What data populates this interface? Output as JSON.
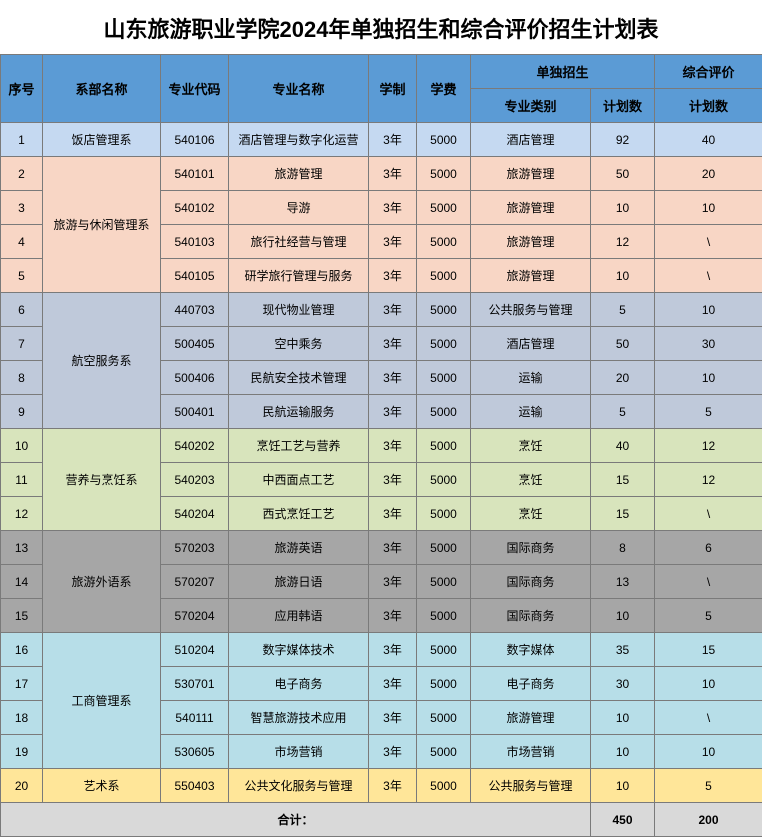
{
  "title": "山东旅游职业学院2024年单独招生和综合评价招生计划表",
  "headers": {
    "seq": "序号",
    "dept": "系部名称",
    "code": "专业代码",
    "major": "专业名称",
    "duration": "学制",
    "fee": "学费",
    "single": "单独招生",
    "category": "专业类别",
    "plan1": "计划数",
    "comprehensive": "综合评价",
    "plan2": "计划数"
  },
  "colors": {
    "header": "#5b9bd5",
    "group1": "#c5d9f1",
    "group2": "#f8d6c5",
    "group3": "#bfc9da",
    "group4": "#d8e4bc",
    "group5": "#a6a6a6",
    "group6": "#b7dee8",
    "group7": "#ffe699",
    "footer": "#d9d9d9"
  },
  "departments": [
    {
      "name": "饭店管理系",
      "color": "#c5d9f1",
      "rows": [
        {
          "seq": "1",
          "code": "540106",
          "major": "酒店管理与数字化运营",
          "duration": "3年",
          "fee": "5000",
          "category": "酒店管理",
          "plan1": "92",
          "plan2": "40"
        }
      ]
    },
    {
      "name": "旅游与休闲管理系",
      "color": "#f8d6c5",
      "rows": [
        {
          "seq": "2",
          "code": "540101",
          "major": "旅游管理",
          "duration": "3年",
          "fee": "5000",
          "category": "旅游管理",
          "plan1": "50",
          "plan2": "20"
        },
        {
          "seq": "3",
          "code": "540102",
          "major": "导游",
          "duration": "3年",
          "fee": "5000",
          "category": "旅游管理",
          "plan1": "10",
          "plan2": "10"
        },
        {
          "seq": "4",
          "code": "540103",
          "major": "旅行社经营与管理",
          "duration": "3年",
          "fee": "5000",
          "category": "旅游管理",
          "plan1": "12",
          "plan2": "\\"
        },
        {
          "seq": "5",
          "code": "540105",
          "major": "研学旅行管理与服务",
          "duration": "3年",
          "fee": "5000",
          "category": "旅游管理",
          "plan1": "10",
          "plan2": "\\"
        }
      ]
    },
    {
      "name": "航空服务系",
      "color": "#bfc9da",
      "rows": [
        {
          "seq": "6",
          "code": "440703",
          "major": "现代物业管理",
          "duration": "3年",
          "fee": "5000",
          "category": "公共服务与管理",
          "plan1": "5",
          "plan2": "10"
        },
        {
          "seq": "7",
          "code": "500405",
          "major": "空中乘务",
          "duration": "3年",
          "fee": "5000",
          "category": "酒店管理",
          "plan1": "50",
          "plan2": "30"
        },
        {
          "seq": "8",
          "code": "500406",
          "major": "民航安全技术管理",
          "duration": "3年",
          "fee": "5000",
          "category": "运输",
          "plan1": "20",
          "plan2": "10"
        },
        {
          "seq": "9",
          "code": "500401",
          "major": "民航运输服务",
          "duration": "3年",
          "fee": "5000",
          "category": "运输",
          "plan1": "5",
          "plan2": "5"
        }
      ]
    },
    {
      "name": "营养与烹饪系",
      "color": "#d8e4bc",
      "rows": [
        {
          "seq": "10",
          "code": "540202",
          "major": "烹饪工艺与营养",
          "duration": "3年",
          "fee": "5000",
          "category": "烹饪",
          "plan1": "40",
          "plan2": "12"
        },
        {
          "seq": "11",
          "code": "540203",
          "major": "中西面点工艺",
          "duration": "3年",
          "fee": "5000",
          "category": "烹饪",
          "plan1": "15",
          "plan2": "12"
        },
        {
          "seq": "12",
          "code": "540204",
          "major": "西式烹饪工艺",
          "duration": "3年",
          "fee": "5000",
          "category": "烹饪",
          "plan1": "15",
          "plan2": "\\"
        }
      ]
    },
    {
      "name": "旅游外语系",
      "color": "#a6a6a6",
      "rows": [
        {
          "seq": "13",
          "code": "570203",
          "major": "旅游英语",
          "duration": "3年",
          "fee": "5000",
          "category": "国际商务",
          "plan1": "8",
          "plan2": "6"
        },
        {
          "seq": "14",
          "code": "570207",
          "major": "旅游日语",
          "duration": "3年",
          "fee": "5000",
          "category": "国际商务",
          "plan1": "13",
          "plan2": "\\"
        },
        {
          "seq": "15",
          "code": "570204",
          "major": "应用韩语",
          "duration": "3年",
          "fee": "5000",
          "category": "国际商务",
          "plan1": "10",
          "plan2": "5"
        }
      ]
    },
    {
      "name": "工商管理系",
      "color": "#b7dee8",
      "rows": [
        {
          "seq": "16",
          "code": "510204",
          "major": "数字媒体技术",
          "duration": "3年",
          "fee": "5000",
          "category": "数字媒体",
          "plan1": "35",
          "plan2": "15"
        },
        {
          "seq": "17",
          "code": "530701",
          "major": "电子商务",
          "duration": "3年",
          "fee": "5000",
          "category": "电子商务",
          "plan1": "30",
          "plan2": "10"
        },
        {
          "seq": "18",
          "code": "540111",
          "major": "智慧旅游技术应用",
          "duration": "3年",
          "fee": "5000",
          "category": "旅游管理",
          "plan1": "10",
          "plan2": "\\"
        },
        {
          "seq": "19",
          "code": "530605",
          "major": "市场营销",
          "duration": "3年",
          "fee": "5000",
          "category": "市场营销",
          "plan1": "10",
          "plan2": "10"
        }
      ]
    },
    {
      "name": "艺术系",
      "color": "#ffe699",
      "rows": [
        {
          "seq": "20",
          "code": "550403",
          "major": "公共文化服务与管理",
          "duration": "3年",
          "fee": "5000",
          "category": "公共服务与管理",
          "plan1": "10",
          "plan2": "5"
        }
      ]
    }
  ],
  "footer": {
    "label": "合计：",
    "total1": "450",
    "total2": "200"
  }
}
